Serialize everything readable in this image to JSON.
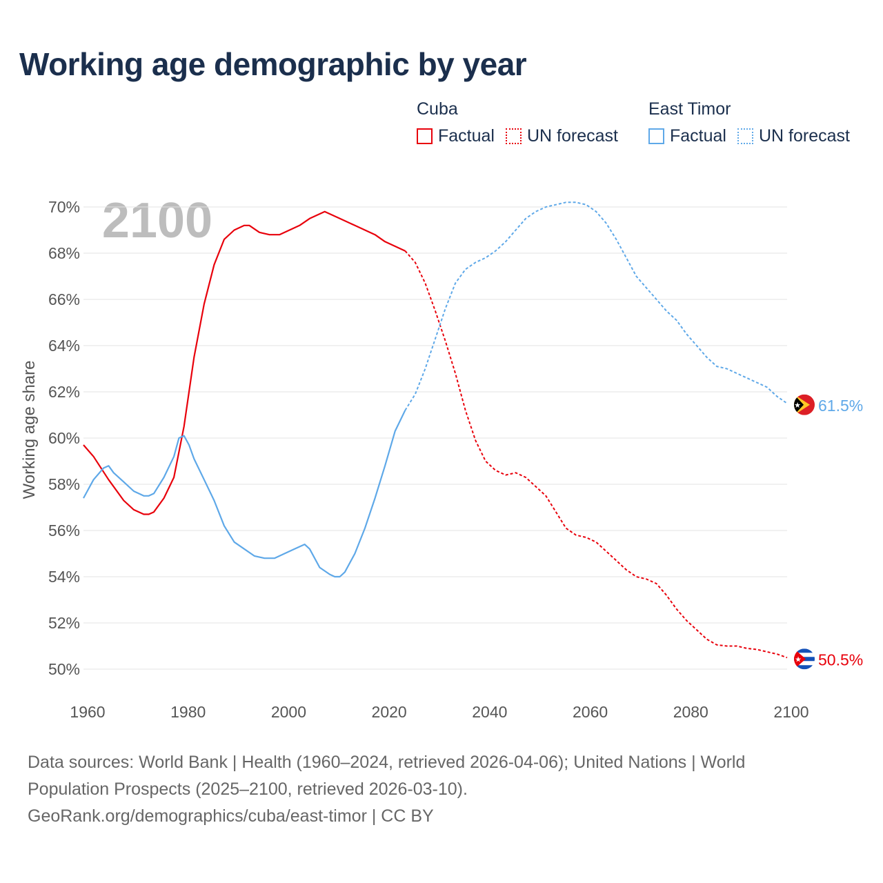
{
  "title": "Working age demographic by year",
  "legend": {
    "groups": [
      {
        "country": "Cuba",
        "factual_label": "Factual",
        "forecast_label": "UN forecast",
        "color": "#e8000b"
      },
      {
        "country": "East Timor",
        "factual_label": "Factual",
        "forecast_label": "UN forecast",
        "color": "#5ea8e8"
      }
    ]
  },
  "year_watermark": "2100",
  "sources": {
    "line1": "Data sources: World Bank | Health (1960–2024, retrieved 2026-04-06); United Nations | World",
    "line2": "Population Prospects (2025–2100, retrieved 2026-03-10).",
    "line3": "GeoRank.org/demographics/cuba/east-timor | CC BY"
  },
  "chart_data": {
    "type": "line",
    "title": "Working age demographic by year",
    "xlabel": "",
    "ylabel": "Working age share",
    "xlim": [
      1960,
      2100
    ],
    "ylim": [
      50,
      70
    ],
    "x_ticks": [
      1960,
      1980,
      2000,
      2020,
      2040,
      2060,
      2080,
      2100
    ],
    "y_ticks": [
      50,
      52,
      54,
      56,
      58,
      60,
      62,
      64,
      66,
      68,
      70
    ],
    "y_tick_suffix": "%",
    "grid": true,
    "factual_end_year": 2024,
    "series": [
      {
        "name": "Cuba",
        "color": "#e8000b",
        "end_label": "50.5%",
        "flag": "cuba",
        "points": [
          [
            1960,
            59.7
          ],
          [
            1962,
            59.2
          ],
          [
            1965,
            58.2
          ],
          [
            1968,
            57.3
          ],
          [
            1970,
            56.9
          ],
          [
            1972,
            56.7
          ],
          [
            1973,
            56.7
          ],
          [
            1974,
            56.8
          ],
          [
            1976,
            57.4
          ],
          [
            1978,
            58.3
          ],
          [
            1980,
            60.5
          ],
          [
            1982,
            63.5
          ],
          [
            1984,
            65.8
          ],
          [
            1986,
            67.5
          ],
          [
            1988,
            68.6
          ],
          [
            1990,
            69.0
          ],
          [
            1992,
            69.2
          ],
          [
            1993,
            69.2
          ],
          [
            1995,
            68.9
          ],
          [
            1997,
            68.8
          ],
          [
            1999,
            68.8
          ],
          [
            2001,
            69.0
          ],
          [
            2003,
            69.2
          ],
          [
            2005,
            69.5
          ],
          [
            2008,
            69.8
          ],
          [
            2011,
            69.5
          ],
          [
            2014,
            69.2
          ],
          [
            2016,
            69.0
          ],
          [
            2018,
            68.8
          ],
          [
            2020,
            68.5
          ],
          [
            2022,
            68.3
          ],
          [
            2024,
            68.1
          ],
          [
            2026,
            67.6
          ],
          [
            2028,
            66.7
          ],
          [
            2030,
            65.5
          ],
          [
            2032,
            64.2
          ],
          [
            2034,
            62.8
          ],
          [
            2036,
            61.2
          ],
          [
            2038,
            59.9
          ],
          [
            2040,
            59.0
          ],
          [
            2042,
            58.6
          ],
          [
            2044,
            58.4
          ],
          [
            2046,
            58.5
          ],
          [
            2048,
            58.3
          ],
          [
            2050,
            57.9
          ],
          [
            2052,
            57.5
          ],
          [
            2054,
            56.8
          ],
          [
            2056,
            56.1
          ],
          [
            2058,
            55.8
          ],
          [
            2060,
            55.7
          ],
          [
            2062,
            55.5
          ],
          [
            2064,
            55.1
          ],
          [
            2066,
            54.7
          ],
          [
            2068,
            54.3
          ],
          [
            2070,
            54.0
          ],
          [
            2072,
            53.9
          ],
          [
            2074,
            53.7
          ],
          [
            2076,
            53.2
          ],
          [
            2078,
            52.6
          ],
          [
            2080,
            52.1
          ],
          [
            2082,
            51.7
          ],
          [
            2084,
            51.3
          ],
          [
            2086,
            51.05
          ],
          [
            2088,
            51.0
          ],
          [
            2090,
            51.0
          ],
          [
            2092,
            50.9
          ],
          [
            2094,
            50.85
          ],
          [
            2096,
            50.75
          ],
          [
            2098,
            50.65
          ],
          [
            2100,
            50.5
          ]
        ]
      },
      {
        "name": "East Timor",
        "color": "#5ea8e8",
        "end_label": "61.5%",
        "flag": "east-timor",
        "points": [
          [
            1960,
            57.4
          ],
          [
            1962,
            58.2
          ],
          [
            1964,
            58.7
          ],
          [
            1965,
            58.8
          ],
          [
            1966,
            58.5
          ],
          [
            1968,
            58.1
          ],
          [
            1970,
            57.7
          ],
          [
            1972,
            57.5
          ],
          [
            1973,
            57.5
          ],
          [
            1974,
            57.6
          ],
          [
            1976,
            58.3
          ],
          [
            1978,
            59.2
          ],
          [
            1979,
            60.0
          ],
          [
            1980,
            60.1
          ],
          [
            1981,
            59.7
          ],
          [
            1982,
            59.1
          ],
          [
            1984,
            58.2
          ],
          [
            1986,
            57.3
          ],
          [
            1988,
            56.2
          ],
          [
            1990,
            55.5
          ],
          [
            1992,
            55.2
          ],
          [
            1994,
            54.9
          ],
          [
            1996,
            54.8
          ],
          [
            1998,
            54.8
          ],
          [
            2000,
            55.0
          ],
          [
            2002,
            55.2
          ],
          [
            2004,
            55.4
          ],
          [
            2005,
            55.2
          ],
          [
            2007,
            54.4
          ],
          [
            2009,
            54.1
          ],
          [
            2010,
            54.0
          ],
          [
            2011,
            54.0
          ],
          [
            2012,
            54.2
          ],
          [
            2014,
            55.0
          ],
          [
            2016,
            56.1
          ],
          [
            2018,
            57.4
          ],
          [
            2020,
            58.8
          ],
          [
            2022,
            60.3
          ],
          [
            2024,
            61.2
          ],
          [
            2026,
            61.9
          ],
          [
            2028,
            63.0
          ],
          [
            2030,
            64.3
          ],
          [
            2032,
            65.6
          ],
          [
            2034,
            66.7
          ],
          [
            2036,
            67.3
          ],
          [
            2038,
            67.6
          ],
          [
            2040,
            67.8
          ],
          [
            2042,
            68.1
          ],
          [
            2044,
            68.5
          ],
          [
            2046,
            69.0
          ],
          [
            2048,
            69.5
          ],
          [
            2050,
            69.8
          ],
          [
            2052,
            70.0
          ],
          [
            2054,
            70.1
          ],
          [
            2056,
            70.2
          ],
          [
            2058,
            70.2
          ],
          [
            2060,
            70.1
          ],
          [
            2062,
            69.8
          ],
          [
            2064,
            69.3
          ],
          [
            2066,
            68.6
          ],
          [
            2068,
            67.8
          ],
          [
            2070,
            67.0
          ],
          [
            2072,
            66.5
          ],
          [
            2074,
            66.0
          ],
          [
            2076,
            65.5
          ],
          [
            2078,
            65.1
          ],
          [
            2080,
            64.5
          ],
          [
            2082,
            64.0
          ],
          [
            2084,
            63.5
          ],
          [
            2086,
            63.1
          ],
          [
            2088,
            63.0
          ],
          [
            2090,
            62.8
          ],
          [
            2092,
            62.6
          ],
          [
            2094,
            62.4
          ],
          [
            2096,
            62.2
          ],
          [
            2098,
            61.8
          ],
          [
            2100,
            61.5
          ]
        ]
      }
    ]
  }
}
